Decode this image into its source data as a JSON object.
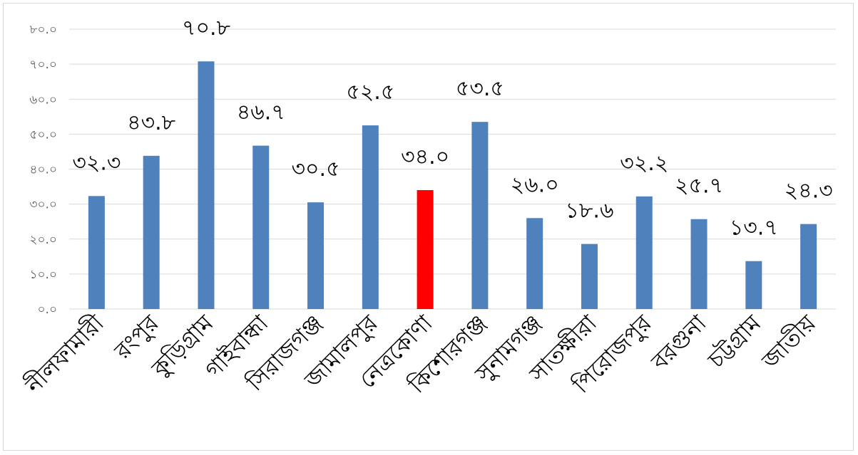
{
  "chart_data": {
    "type": "bar",
    "categories": [
      "নীলফামারী",
      "রংপুর",
      "কুড়িগ্রাম",
      "গাইবান্ধা",
      "সিরাজগঞ্জ",
      "জামালপুর",
      "নেত্রকোণা",
      "কিশোরগঞ্জ",
      "সুনামগঞ্জ",
      "সাতক্ষীরা",
      "পিরোজপুর",
      "বরগুনা",
      "চট্টগ্রাম",
      "জাতীয়"
    ],
    "values": [
      32.3,
      43.8,
      70.8,
      46.7,
      30.5,
      52.5,
      34.0,
      53.5,
      26.0,
      18.6,
      32.2,
      25.7,
      13.7,
      24.3
    ],
    "value_labels": [
      "৩২.৩",
      "৪৩.৮",
      "৭০.৮",
      "৪৬.৭",
      "৩০.৫",
      "৫২.৫",
      "৩৪.০",
      "৫৩.৫",
      "২৬.০",
      "১৮.৬",
      "৩২.২",
      "২৫.৭",
      "১৩.৭",
      "২৪.৩"
    ],
    "y_ticks": [
      0,
      10,
      20,
      30,
      40,
      50,
      60,
      70,
      80
    ],
    "y_tick_labels": [
      "০.০",
      "১০.০",
      "২০.০",
      "৩০.০",
      "৪০.০",
      "৫০.০",
      "৬০.০",
      "৭০.০",
      "৮০.০"
    ],
    "ylim": [
      0,
      80
    ],
    "grid": true,
    "legend": "none",
    "colors": {
      "bar": "#4f81bd",
      "highlight": "#ff0000",
      "grid": "#d9d9d9",
      "tick": "#595959"
    },
    "highlight_index": 6
  }
}
